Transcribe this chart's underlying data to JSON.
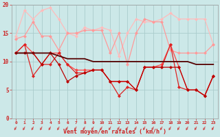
{
  "xlabel": "Vent moyen/en rafales ( km/h )",
  "background_color": "#cce8e8",
  "grid_color": "#aacccc",
  "x": [
    0,
    1,
    2,
    3,
    4,
    5,
    6,
    7,
    8,
    9,
    10,
    11,
    12,
    13,
    14,
    15,
    16,
    17,
    18,
    19,
    20,
    21,
    22,
    23
  ],
  "ylim": [
    0,
    20
  ],
  "yticks": [
    0,
    5,
    10,
    15,
    20
  ],
  "series": [
    {
      "data": [
        14.5,
        19.0,
        17.5,
        19.0,
        19.5,
        17.5,
        15.0,
        14.5,
        16.0,
        15.5,
        16.0,
        15.5,
        11.0,
        15.0,
        17.5,
        17.0,
        17.0,
        17.5,
        18.5,
        17.5,
        17.5,
        17.5,
        17.5,
        13.0
      ],
      "color": "#ffbbbb",
      "linewidth": 0.9,
      "marker": "D",
      "markersize": 2.0
    },
    {
      "data": [
        14.0,
        14.5,
        17.0,
        14.5,
        14.5,
        12.0,
        15.0,
        15.0,
        15.5,
        15.5,
        15.5,
        11.5,
        15.0,
        9.5,
        15.0,
        17.5,
        17.0,
        17.0,
        12.0,
        11.5,
        11.5,
        11.5,
        11.5,
        13.0
      ],
      "color": "#ff9999",
      "linewidth": 0.9,
      "marker": "D",
      "markersize": 2.0
    },
    {
      "data": [
        11.5,
        13.0,
        11.5,
        9.5,
        11.5,
        11.5,
        9.5,
        8.5,
        8.5,
        8.5,
        8.5,
        6.5,
        6.5,
        6.5,
        5.0,
        9.0,
        9.0,
        9.5,
        13.0,
        9.0,
        5.0,
        5.0,
        4.0,
        7.5
      ],
      "color": "#ff4444",
      "linewidth": 0.9,
      "marker": "D",
      "markersize": 2.0
    },
    {
      "data": [
        11.5,
        13.0,
        7.5,
        9.5,
        9.5,
        11.5,
        9.5,
        8.0,
        8.0,
        8.5,
        8.5,
        6.5,
        4.0,
        5.5,
        5.0,
        9.0,
        9.0,
        9.0,
        13.0,
        5.5,
        5.0,
        5.0,
        4.0,
        7.5
      ],
      "color": "#dd2222",
      "linewidth": 0.9,
      "marker": "D",
      "markersize": 2.0
    },
    {
      "data": [
        11.5,
        11.5,
        11.5,
        9.5,
        11.5,
        9.5,
        6.5,
        7.5,
        8.0,
        8.5,
        8.5,
        6.5,
        6.5,
        6.5,
        5.0,
        9.0,
        9.0,
        9.0,
        9.0,
        9.0,
        5.0,
        5.0,
        4.0,
        7.5
      ],
      "color": "#bb0000",
      "linewidth": 0.9,
      "marker": "D",
      "markersize": 2.0
    },
    {
      "data": [
        11.5,
        11.5,
        11.5,
        11.5,
        11.5,
        11.0,
        10.5,
        10.5,
        10.5,
        10.0,
        10.0,
        10.0,
        10.0,
        10.0,
        10.0,
        10.0,
        10.0,
        10.0,
        10.0,
        10.0,
        10.0,
        9.5,
        9.5,
        9.5
      ],
      "color": "#550000",
      "linewidth": 1.3,
      "marker": null,
      "markersize": 0
    }
  ]
}
